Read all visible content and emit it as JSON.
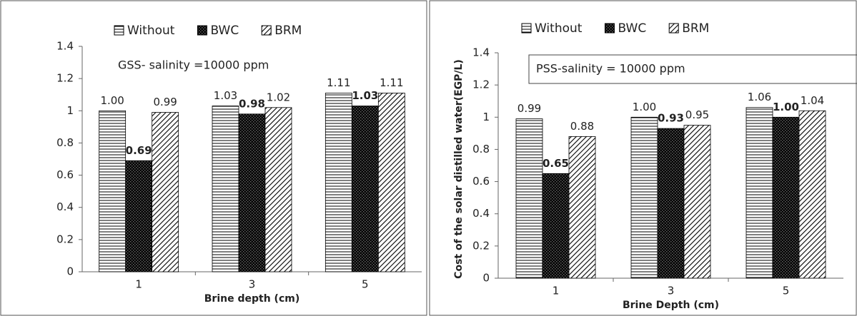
{
  "chart_data": [
    {
      "type": "bar",
      "annotation": "GSS- salinity =10000 ppm",
      "xlabel": "Brine depth (cm)",
      "categories": [
        "1",
        "3",
        "5"
      ],
      "series": [
        {
          "name": "Without",
          "color": "#000",
          "pattern": "horizontal",
          "values": [
            1.0,
            1.03,
            1.11
          ],
          "value_labels": [
            "1.00",
            "1.03",
            "1.11"
          ]
        },
        {
          "name": "BWC",
          "color": "#000",
          "pattern": "checker",
          "values": [
            0.69,
            0.98,
            1.03
          ],
          "value_labels": [
            "0.69",
            "0.98",
            "1.03"
          ]
        },
        {
          "name": "BRM",
          "color": "#000",
          "pattern": "diagonal",
          "values": [
            0.99,
            1.02,
            1.11
          ],
          "value_labels": [
            "0.99",
            "1.02",
            "1.11"
          ]
        }
      ],
      "ylim": [
        0,
        1.4
      ],
      "yticks": [
        0,
        0.2,
        0.4,
        0.6,
        0.8,
        1,
        1.2,
        1.4
      ],
      "legend": "top"
    },
    {
      "type": "bar",
      "annotation": "PSS-salinity = 10000 ppm",
      "xlabel": "Brine Depth (cm)",
      "ylabel": "Cost of the solar distilled water(EGP/L)",
      "categories": [
        "1",
        "3",
        "5"
      ],
      "series": [
        {
          "name": "Without",
          "color": "#000",
          "pattern": "horizontal",
          "values": [
            0.99,
            1.0,
            1.06
          ],
          "value_labels": [
            "0.99",
            "1.00",
            "1.06"
          ]
        },
        {
          "name": "BWC",
          "color": "#000",
          "pattern": "checker",
          "values": [
            0.65,
            0.93,
            1.0
          ],
          "value_labels": [
            "0.65",
            "0.93",
            "1.00"
          ]
        },
        {
          "name": "BRM",
          "color": "#000",
          "pattern": "diagonal",
          "values": [
            0.88,
            0.95,
            1.04
          ],
          "value_labels": [
            "0.88",
            "0.95",
            "1.04"
          ]
        }
      ],
      "ylim": [
        0,
        1.4
      ],
      "yticks": [
        0,
        0.2,
        0.4,
        0.6,
        0.8,
        1,
        1.2,
        1.4
      ],
      "legend": "top"
    }
  ]
}
